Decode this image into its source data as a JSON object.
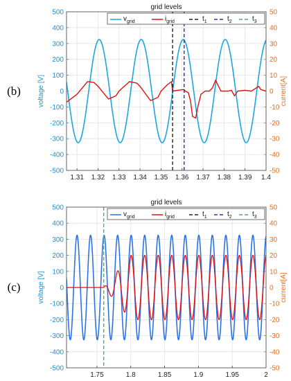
{
  "chart_data": [
    {
      "type": "line",
      "panel_label": "(b)",
      "title": "grid levels",
      "ylabel": "voltage [V]",
      "y2label": "current[A]",
      "xlim": [
        1.305,
        1.4
      ],
      "ylim": [
        -500,
        500
      ],
      "y2lim": [
        -50,
        50
      ],
      "xticks": [
        "1.31",
        "1.32",
        "1.33",
        "1.34",
        "1.35",
        "1.36",
        "1.37",
        "1.38",
        "1.39",
        "1.4"
      ],
      "yticks": [
        "500",
        "400",
        "300",
        "200",
        "100",
        "0",
        "-100",
        "-200",
        "-300",
        "-400",
        "-500"
      ],
      "y2ticks": [
        "50",
        "40",
        "30",
        "20",
        "10",
        "0",
        "-10",
        "-20",
        "-30",
        "-40",
        "-50"
      ],
      "grid": true,
      "legend_position": "top",
      "legend": [
        {
          "key": "v",
          "main": "v",
          "sub": "grid",
          "color": "#1aa6e0",
          "dash": "none"
        },
        {
          "key": "i",
          "main": "i",
          "sub": "grid",
          "color": "#e01010",
          "dash": "none"
        },
        {
          "key": "t1",
          "main": "t",
          "sub": "1",
          "color": "#222222",
          "dash": "5,3"
        },
        {
          "key": "t2",
          "main": "t",
          "sub": "2",
          "color": "#2a2ad0",
          "dash": "5,3"
        },
        {
          "key": "t3",
          "main": "t",
          "sub": "3",
          "color": "#4cb84c",
          "dash": "5,3"
        }
      ],
      "voltage": {
        "amplitude": 325,
        "frequency_hz": 50,
        "phase_deg": 80,
        "color": "#1aa6e0"
      },
      "current_points": [
        [
          1.305,
          -7
        ],
        [
          1.31,
          -2
        ],
        [
          1.315,
          6
        ],
        [
          1.318,
          5.5
        ],
        [
          1.32,
          3
        ],
        [
          1.325,
          -5
        ],
        [
          1.3285,
          -3
        ],
        [
          1.33,
          0
        ],
        [
          1.335,
          6
        ],
        [
          1.3385,
          5
        ],
        [
          1.34,
          3
        ],
        [
          1.345,
          -6
        ],
        [
          1.3485,
          -4
        ],
        [
          1.35,
          0
        ],
        [
          1.353,
          4
        ],
        [
          1.355,
          6
        ],
        [
          1.3555,
          0
        ],
        [
          1.358,
          0.5
        ],
        [
          1.361,
          1
        ],
        [
          1.3615,
          0
        ],
        [
          1.363,
          -1
        ],
        [
          1.364,
          -6
        ],
        [
          1.365,
          -16
        ],
        [
          1.3665,
          -17
        ],
        [
          1.3675,
          -10
        ],
        [
          1.369,
          -2
        ],
        [
          1.371,
          0
        ],
        [
          1.373,
          0
        ],
        [
          1.3745,
          2
        ],
        [
          1.376,
          7
        ],
        [
          1.377,
          4
        ],
        [
          1.3785,
          0
        ],
        [
          1.382,
          0
        ],
        [
          1.3835,
          0.5
        ],
        [
          1.385,
          -3
        ],
        [
          1.3865,
          0
        ],
        [
          1.39,
          0.5
        ],
        [
          1.393,
          0
        ],
        [
          1.3965,
          3
        ],
        [
          1.3975,
          1
        ],
        [
          1.4,
          0
        ]
      ],
      "current_color": "#e01010",
      "events": {
        "t1": 1.3555,
        "t2": 1.361
      }
    },
    {
      "type": "line",
      "panel_label": "(c)",
      "title": "grid levels",
      "ylabel": "voltage [V]",
      "y2label": "current[A]",
      "xlim": [
        1.705,
        2.0
      ],
      "ylim": [
        -500,
        500
      ],
      "y2lim": [
        -50,
        50
      ],
      "xticks": [
        "1.75",
        "1.8",
        "1.85",
        "1.9",
        "1.95",
        "2"
      ],
      "yticks": [
        "500",
        "400",
        "300",
        "200",
        "100",
        "0",
        "-100",
        "-200",
        "-300",
        "-400",
        "-500"
      ],
      "y2ticks": [
        "50",
        "40",
        "30",
        "20",
        "10",
        "0",
        "-10",
        "-20",
        "-30",
        "-40",
        "-50"
      ],
      "grid": true,
      "legend_position": "top",
      "legend": [
        {
          "key": "v",
          "main": "v",
          "sub": "grid",
          "color": "#2a72e8",
          "dash": "none"
        },
        {
          "key": "i",
          "main": "i",
          "sub": "grid",
          "color": "#e01010",
          "dash": "none"
        },
        {
          "key": "t1",
          "main": "t",
          "sub": "1",
          "color": "#222222",
          "dash": "5,3"
        },
        {
          "key": "t2",
          "main": "t",
          "sub": "2",
          "color": "#2a2ad0",
          "dash": "5,3"
        },
        {
          "key": "t3",
          "main": "t",
          "sub": "3",
          "color": "#4cb84c",
          "dash": "5,3"
        }
      ],
      "voltage": {
        "amplitude": 325,
        "frequency_hz": 50,
        "phase_deg": 80,
        "color": "#2a72e8"
      },
      "current": {
        "start": 1.76,
        "ramp_end": 1.8,
        "amplitude": 20,
        "frequency_hz": 50,
        "phase_deg": 80,
        "color": "#e01010"
      },
      "events": {
        "t3": 1.76
      }
    }
  ]
}
